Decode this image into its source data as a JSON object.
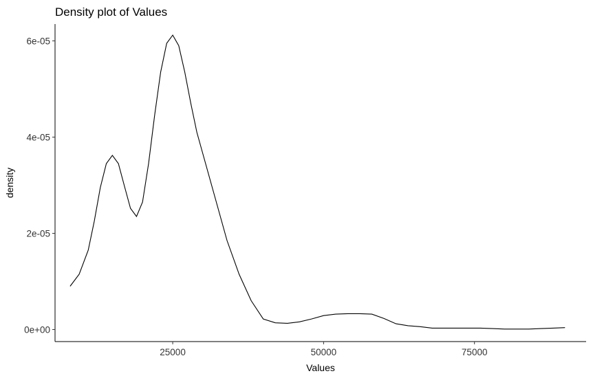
{
  "chart_data": {
    "type": "line",
    "title": "Density plot of Values",
    "xlabel": "Values",
    "ylabel": "density",
    "xlim": [
      5500,
      93500
    ],
    "ylim": [
      -2.5e-06,
      6.35e-05
    ],
    "x_ticks": [
      25000,
      50000,
      75000
    ],
    "x_tick_labels": [
      "25000",
      "50000",
      "75000"
    ],
    "y_ticks": [
      0,
      2e-05,
      4e-05,
      6e-05
    ],
    "y_tick_labels": [
      "0e+00",
      "2e-05",
      "4e-05",
      "6e-05"
    ],
    "grid": false,
    "legend": "none",
    "series": [
      {
        "color": "#000000",
        "x": [
          8000,
          9500,
          11000,
          12000,
          13000,
          14000,
          15000,
          16000,
          17000,
          18000,
          19000,
          20000,
          21000,
          22000,
          23000,
          24000,
          25000,
          26000,
          27000,
          28000,
          29000,
          30000,
          32000,
          34000,
          36000,
          38000,
          40000,
          42000,
          44000,
          46000,
          48000,
          50000,
          52000,
          54000,
          56000,
          58000,
          60000,
          62000,
          64000,
          66000,
          68000,
          70000,
          72000,
          74000,
          76000,
          78000,
          80000,
          82000,
          84000,
          86000,
          88000,
          90000
        ],
        "y": [
          9e-06,
          1.15e-05,
          1.65e-05,
          2.25e-05,
          2.95e-05,
          3.45e-05,
          3.62e-05,
          3.45e-05,
          2.98e-05,
          2.52e-05,
          2.35e-05,
          2.65e-05,
          3.45e-05,
          4.45e-05,
          5.35e-05,
          5.95e-05,
          6.12e-05,
          5.9e-05,
          5.35e-05,
          4.7e-05,
          4.1e-05,
          3.65e-05,
          2.75e-05,
          1.85e-05,
          1.15e-05,
          6e-06,
          2.2e-06,
          1.4e-06,
          1.3e-06,
          1.6e-06,
          2.2e-06,
          2.9e-06,
          3.2e-06,
          3.3e-06,
          3.3e-06,
          3.2e-06,
          2.3e-06,
          1.2e-06,
          8e-07,
          6e-07,
          3e-07,
          3e-07,
          3e-07,
          3e-07,
          3e-07,
          2e-07,
          1e-07,
          1e-07,
          1e-07,
          2e-07,
          3e-07,
          4e-07
        ]
      }
    ]
  }
}
